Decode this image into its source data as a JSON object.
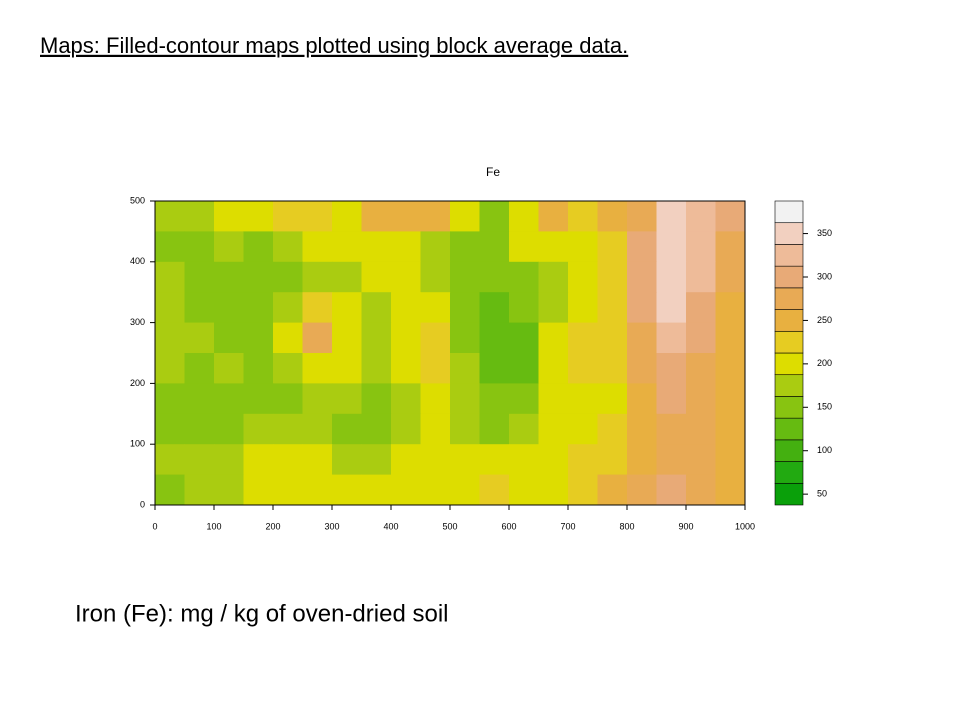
{
  "header": "Maps: Filled-contour maps plotted using block average data.",
  "caption": "Iron (Fe): mg / kg of oven-dried soil",
  "chart_data": {
    "type": "contour",
    "title": "Fe",
    "x": [
      25,
      75,
      125,
      175,
      225,
      275,
      325,
      375,
      425,
      475,
      525,
      575,
      625,
      675,
      725,
      775,
      825,
      875,
      925,
      975
    ],
    "y": [
      475,
      425,
      375,
      325,
      275,
      225,
      175,
      125,
      75,
      25
    ],
    "z": [
      [
        170,
        180,
        190,
        210,
        230,
        220,
        210,
        240,
        250,
        250,
        200,
        160,
        200,
        240,
        230,
        240,
        280,
        340,
        330,
        290
      ],
      [
        160,
        150,
        170,
        160,
        170,
        190,
        200,
        210,
        200,
        180,
        140,
        150,
        190,
        210,
        200,
        230,
        290,
        360,
        330,
        280
      ],
      [
        170,
        150,
        140,
        140,
        150,
        170,
        180,
        200,
        190,
        170,
        150,
        140,
        150,
        170,
        190,
        220,
        290,
        350,
        320,
        270
      ],
      [
        180,
        160,
        150,
        150,
        170,
        230,
        190,
        170,
        190,
        200,
        150,
        130,
        140,
        170,
        210,
        220,
        290,
        340,
        300,
        260
      ],
      [
        180,
        170,
        150,
        160,
        200,
        280,
        210,
        180,
        210,
        220,
        160,
        120,
        120,
        190,
        220,
        220,
        280,
        320,
        290,
        260
      ],
      [
        170,
        160,
        170,
        160,
        170,
        210,
        200,
        170,
        210,
        230,
        170,
        130,
        130,
        200,
        220,
        220,
        270,
        300,
        280,
        250
      ],
      [
        160,
        150,
        140,
        150,
        160,
        180,
        170,
        160,
        180,
        200,
        170,
        140,
        150,
        190,
        210,
        210,
        260,
        290,
        270,
        250
      ],
      [
        150,
        160,
        150,
        170,
        180,
        170,
        150,
        160,
        180,
        200,
        180,
        150,
        170,
        200,
        210,
        220,
        260,
        280,
        270,
        250
      ],
      [
        170,
        180,
        170,
        190,
        200,
        190,
        180,
        170,
        190,
        210,
        200,
        190,
        200,
        210,
        220,
        230,
        260,
        280,
        270,
        250
      ],
      [
        160,
        170,
        180,
        200,
        210,
        210,
        200,
        200,
        200,
        210,
        210,
        220,
        210,
        210,
        220,
        240,
        270,
        290,
        270,
        250
      ]
    ],
    "xlim": [
      0,
      1000
    ],
    "xticks": [
      0,
      100,
      200,
      300,
      400,
      500,
      600,
      700,
      800,
      900,
      1000
    ],
    "ylim": [
      0,
      500
    ],
    "yticks": [
      0,
      100,
      200,
      300,
      400,
      500
    ],
    "colorbar_levels": [
      50,
      75,
      100,
      125,
      150,
      175,
      200,
      225,
      250,
      275,
      300,
      325,
      350,
      375
    ],
    "colorbar_colors": [
      "#0aa00a",
      "#22aa11",
      "#44b010",
      "#66bb11",
      "#88c411",
      "#aacc11",
      "#dddd00",
      "#e6cc22",
      "#e8b040",
      "#e8aa55",
      "#e8aa77",
      "#eebb99",
      "#f2d0c0",
      "#f2f2f2"
    ],
    "colorbar_ticks": [
      50,
      100,
      150,
      200,
      250,
      300,
      350
    ]
  }
}
